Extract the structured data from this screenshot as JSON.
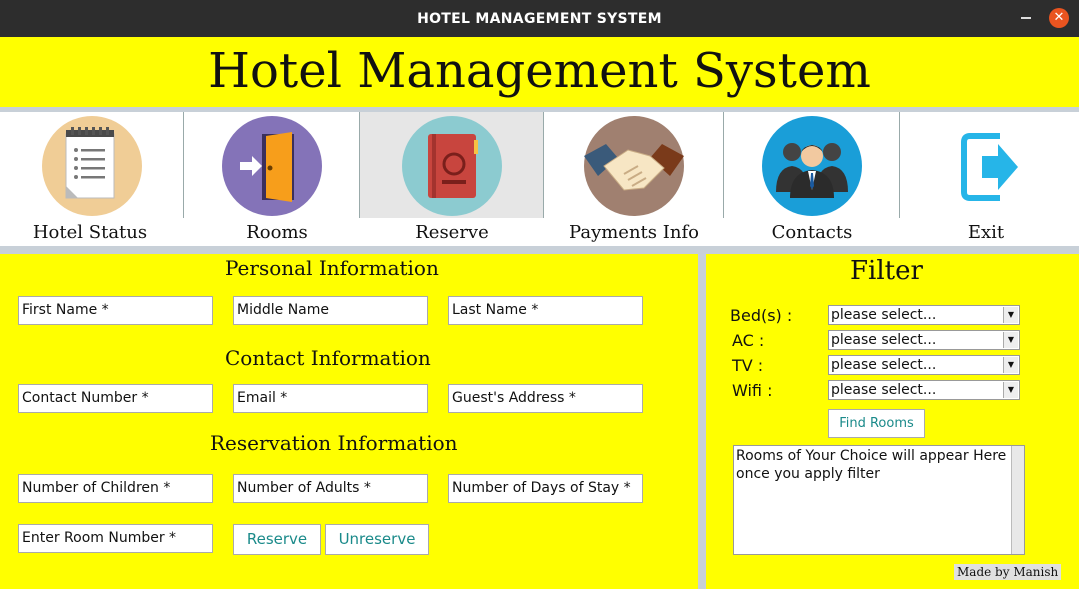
{
  "window": {
    "title": "HOTEL MANAGEMENT SYSTEM",
    "close_glyph": "✕"
  },
  "header": {
    "title": "Hotel Management System"
  },
  "nav": {
    "items": [
      {
        "label": "Hotel Status",
        "icon": "notepad-icon"
      },
      {
        "label": "Rooms",
        "icon": "door-icon"
      },
      {
        "label": "Reserve",
        "icon": "book-icon"
      },
      {
        "label": "Payments Info",
        "icon": "handshake-icon"
      },
      {
        "label": "Contacts",
        "icon": "people-icon"
      },
      {
        "label": "Exit",
        "icon": "exit-icon"
      }
    ],
    "active": "Reserve"
  },
  "personal": {
    "heading": "Personal Information",
    "first_name": "First Name *",
    "middle_name": "Middle Name",
    "last_name": "Last Name *"
  },
  "contact": {
    "heading": "Contact Information",
    "number": "Contact Number *",
    "email": "Email *",
    "address": "Guest's Address *"
  },
  "reservation": {
    "heading": "Reservation Information",
    "children": "Number of Children *",
    "adults": "Number of Adults *",
    "days": "Number of Days of Stay *",
    "room_number": "Enter Room Number *",
    "reserve_label": "Reserve",
    "unreserve_label": "Unreserve"
  },
  "filter": {
    "heading": "Filter",
    "beds_label": "Bed(s) :",
    "ac_label": "AC :",
    "tv_label": "TV :",
    "wifi_label": "Wifi :",
    "beds_value": "please select...",
    "ac_value": "please select...",
    "tv_value": "please select...",
    "wifi_value": "please select...",
    "find_label": "Find Rooms",
    "results_text": "Rooms of Your Choice will appear Here\nonce you apply filter",
    "credit": "Made by Manish"
  },
  "colors": {
    "panel": "#ffff00",
    "titlebar": "#2d2d2d",
    "close": "#e95420",
    "button_text": "#1a8a8a"
  }
}
